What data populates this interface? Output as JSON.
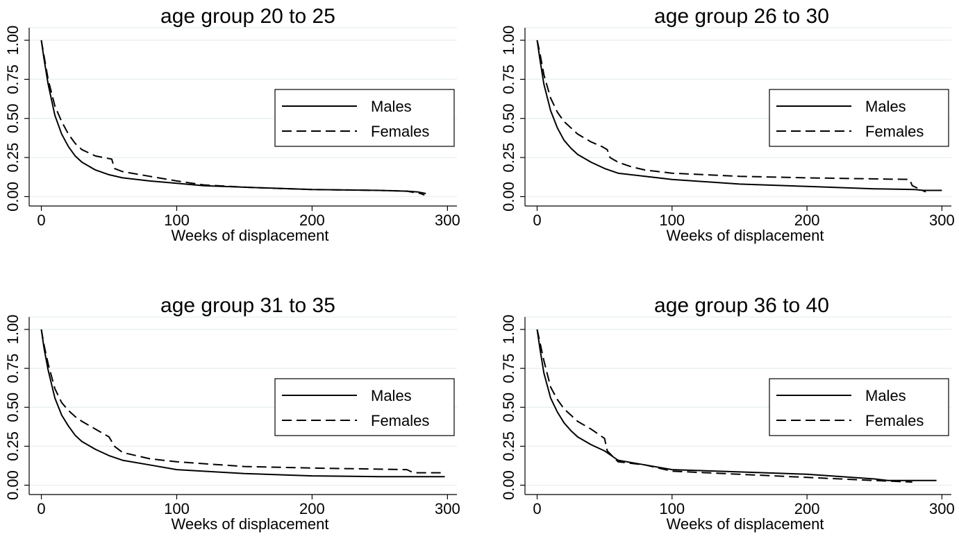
{
  "chart_data": [
    {
      "type": "line",
      "title": "age group 20 to 25",
      "xlabel": "Weeks of displacement",
      "ylabel": "",
      "xlim": [
        0,
        300
      ],
      "ylim": [
        0,
        1
      ],
      "xticks": [
        "0",
        "100",
        "200",
        "300"
      ],
      "yticks": [
        "0.00",
        "0.25",
        "0.50",
        "0.75",
        "1.00"
      ],
      "grid": true,
      "legend": "right",
      "series": [
        {
          "name": "Males",
          "style": "solid",
          "x": [
            0,
            2,
            5,
            10,
            15,
            20,
            25,
            30,
            40,
            50,
            60,
            80,
            100,
            120,
            150,
            200,
            250,
            270,
            278,
            284
          ],
          "y": [
            1.0,
            0.88,
            0.72,
            0.52,
            0.4,
            0.32,
            0.26,
            0.22,
            0.17,
            0.14,
            0.12,
            0.1,
            0.085,
            0.07,
            0.06,
            0.045,
            0.04,
            0.035,
            0.03,
            0.02
          ]
        },
        {
          "name": "Females",
          "style": "dashed",
          "x": [
            0,
            2,
            5,
            10,
            15,
            20,
            25,
            30,
            40,
            52,
            54,
            60,
            80,
            100,
            120,
            150,
            200,
            250,
            270,
            280,
            283
          ],
          "y": [
            1.0,
            0.9,
            0.75,
            0.58,
            0.48,
            0.4,
            0.34,
            0.3,
            0.26,
            0.24,
            0.18,
            0.16,
            0.13,
            0.1,
            0.075,
            0.06,
            0.045,
            0.04,
            0.035,
            0.02,
            0.01
          ]
        }
      ]
    },
    {
      "type": "line",
      "title": "age group 26 to 30",
      "xlabel": "Weeks of displacement",
      "ylabel": "",
      "xlim": [
        0,
        300
      ],
      "ylim": [
        0,
        1
      ],
      "xticks": [
        "0",
        "100",
        "200",
        "300"
      ],
      "yticks": [
        "0.00",
        "0.25",
        "0.50",
        "0.75",
        "1.00"
      ],
      "grid": true,
      "legend": "right",
      "series": [
        {
          "name": "Males",
          "style": "solid",
          "x": [
            0,
            2,
            5,
            10,
            15,
            20,
            25,
            30,
            40,
            50,
            60,
            80,
            100,
            150,
            200,
            250,
            280,
            286,
            300
          ],
          "y": [
            1.0,
            0.88,
            0.72,
            0.55,
            0.44,
            0.36,
            0.31,
            0.27,
            0.22,
            0.18,
            0.15,
            0.13,
            0.11,
            0.08,
            0.065,
            0.05,
            0.045,
            0.04,
            0.04
          ]
        },
        {
          "name": "Females",
          "style": "dashed",
          "x": [
            0,
            2,
            5,
            10,
            15,
            20,
            25,
            30,
            40,
            48,
            52,
            54,
            60,
            70,
            80,
            100,
            150,
            200,
            276,
            278,
            288
          ],
          "y": [
            1.0,
            0.92,
            0.78,
            0.63,
            0.54,
            0.48,
            0.44,
            0.4,
            0.35,
            0.32,
            0.3,
            0.25,
            0.22,
            0.19,
            0.17,
            0.15,
            0.13,
            0.12,
            0.11,
            0.07,
            0.03
          ]
        }
      ]
    },
    {
      "type": "line",
      "title": "age group 31 to 35",
      "xlabel": "Weeks of displacement",
      "ylabel": "",
      "xlim": [
        0,
        300
      ],
      "ylim": [
        0,
        1
      ],
      "xticks": [
        "0",
        "100",
        "200",
        "300"
      ],
      "yticks": [
        "0.00",
        "0.25",
        "0.50",
        "0.75",
        "1.00"
      ],
      "grid": true,
      "legend": "right",
      "series": [
        {
          "name": "Males",
          "style": "solid",
          "x": [
            0,
            2,
            5,
            10,
            15,
            20,
            25,
            30,
            40,
            50,
            60,
            80,
            100,
            150,
            200,
            250,
            298
          ],
          "y": [
            1.0,
            0.88,
            0.74,
            0.56,
            0.45,
            0.38,
            0.32,
            0.28,
            0.23,
            0.19,
            0.16,
            0.13,
            0.1,
            0.075,
            0.06,
            0.055,
            0.055
          ]
        },
        {
          "name": "Females",
          "style": "dashed",
          "x": [
            0,
            2,
            5,
            10,
            15,
            20,
            25,
            30,
            40,
            50,
            54,
            60,
            70,
            80,
            100,
            150,
            200,
            270,
            275,
            298
          ],
          "y": [
            1.0,
            0.9,
            0.78,
            0.62,
            0.53,
            0.48,
            0.44,
            0.41,
            0.36,
            0.31,
            0.25,
            0.21,
            0.19,
            0.17,
            0.15,
            0.12,
            0.11,
            0.1,
            0.08,
            0.08
          ]
        }
      ]
    },
    {
      "type": "line",
      "title": "age group 36 to 40",
      "xlabel": "Weeks of displacement",
      "ylabel": "",
      "xlim": [
        0,
        300
      ],
      "ylim": [
        0,
        1
      ],
      "xticks": [
        "0",
        "100",
        "200",
        "300"
      ],
      "yticks": [
        "0.00",
        "0.25",
        "0.50",
        "0.75",
        "1.00"
      ],
      "grid": true,
      "legend": "right",
      "series": [
        {
          "name": "Males",
          "style": "solid",
          "x": [
            0,
            2,
            5,
            10,
            15,
            20,
            25,
            30,
            40,
            50,
            60,
            80,
            100,
            150,
            200,
            250,
            260,
            296
          ],
          "y": [
            1.0,
            0.88,
            0.72,
            0.56,
            0.47,
            0.4,
            0.35,
            0.31,
            0.26,
            0.22,
            0.16,
            0.13,
            0.1,
            0.085,
            0.07,
            0.04,
            0.03,
            0.03
          ]
        },
        {
          "name": "Females",
          "style": "dashed",
          "x": [
            0,
            2,
            5,
            10,
            15,
            20,
            25,
            30,
            40,
            50,
            52,
            60,
            80,
            100,
            150,
            200,
            250,
            278
          ],
          "y": [
            1.0,
            0.92,
            0.8,
            0.63,
            0.55,
            0.49,
            0.45,
            0.41,
            0.36,
            0.3,
            0.22,
            0.15,
            0.13,
            0.09,
            0.07,
            0.05,
            0.03,
            0.02
          ]
        }
      ]
    }
  ]
}
